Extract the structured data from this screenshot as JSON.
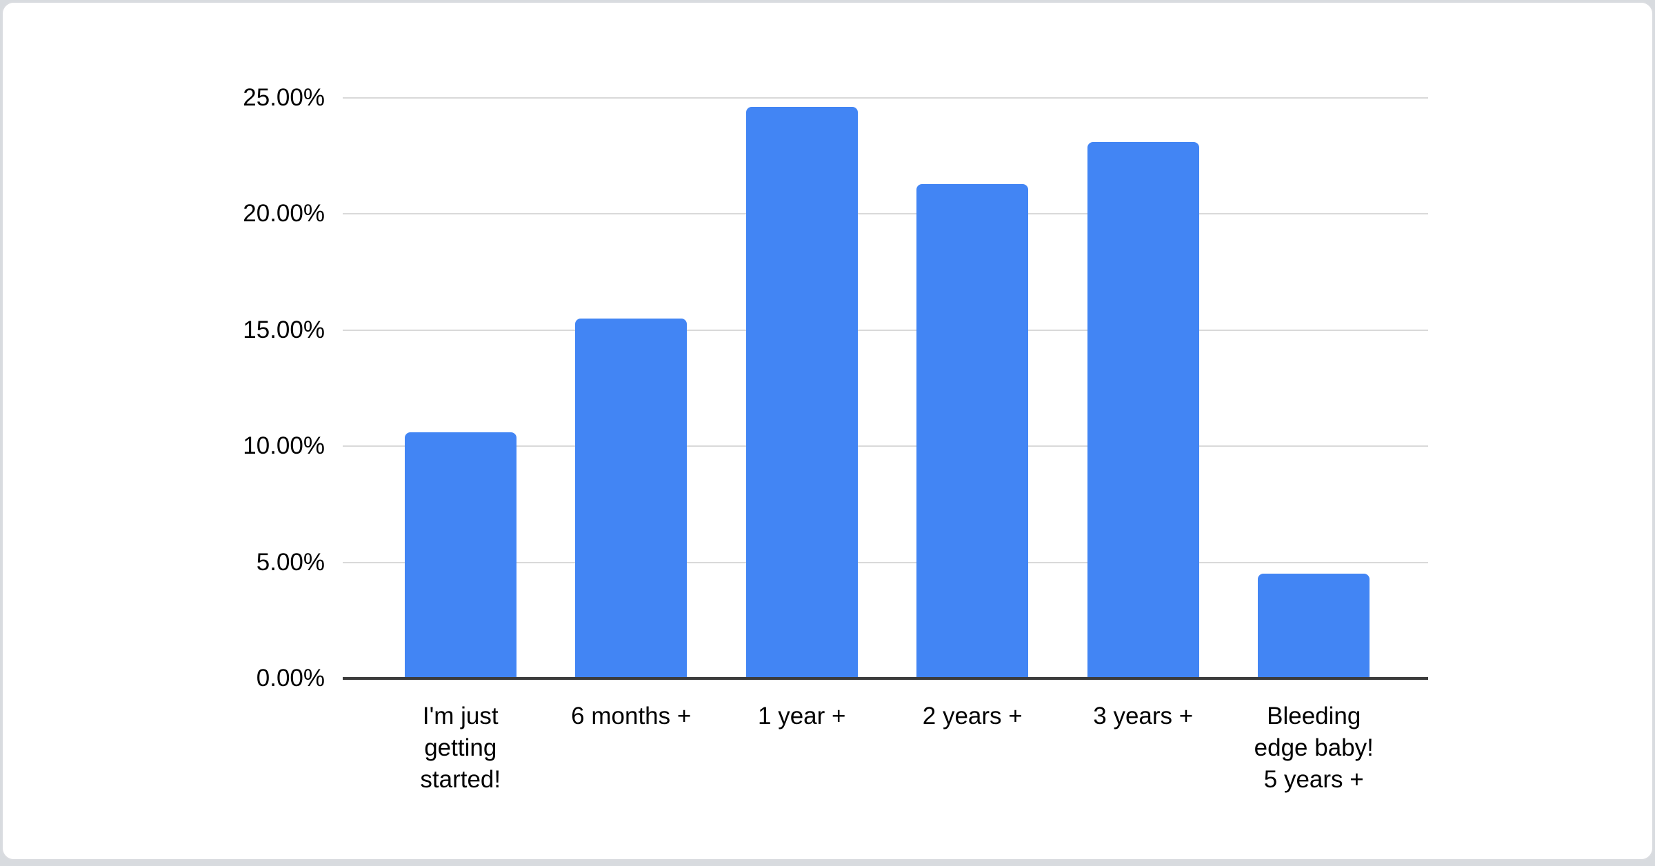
{
  "chart_data": {
    "type": "bar",
    "title": "",
    "xlabel": "",
    "ylabel": "",
    "categories": [
      "I'm just getting started!",
      "6 months +",
      "1 year +",
      "2 years +",
      "3 years +",
      "Bleeding edge baby! 5 years +"
    ],
    "category_label_lines": [
      [
        "I'm just",
        "getting",
        "started!"
      ],
      [
        "6 months +"
      ],
      [
        "1 year +"
      ],
      [
        "2 years +"
      ],
      [
        "3 years +"
      ],
      [
        "Bleeding",
        "edge baby!",
        "5 years +"
      ]
    ],
    "values": [
      10.6,
      15.5,
      24.6,
      21.3,
      23.1,
      4.5
    ],
    "value_unit": "%",
    "ylim": [
      0,
      25
    ],
    "y_ticks": [
      {
        "value": 0,
        "label": "0.00%"
      },
      {
        "value": 5,
        "label": "5.00%"
      },
      {
        "value": 10,
        "label": "10.00%"
      },
      {
        "value": 15,
        "label": "15.00%"
      },
      {
        "value": 20,
        "label": "20.00%"
      },
      {
        "value": 25,
        "label": "25.00%"
      }
    ],
    "grid": true,
    "legend": false,
    "colors": {
      "bar": "#4285f4",
      "gridline": "#d9d9d9",
      "axis_line": "#3b3b3b",
      "text": "#000000",
      "card_background": "#ffffff",
      "card_border": "#dadce0",
      "page_background": "#d8dbdf"
    }
  }
}
